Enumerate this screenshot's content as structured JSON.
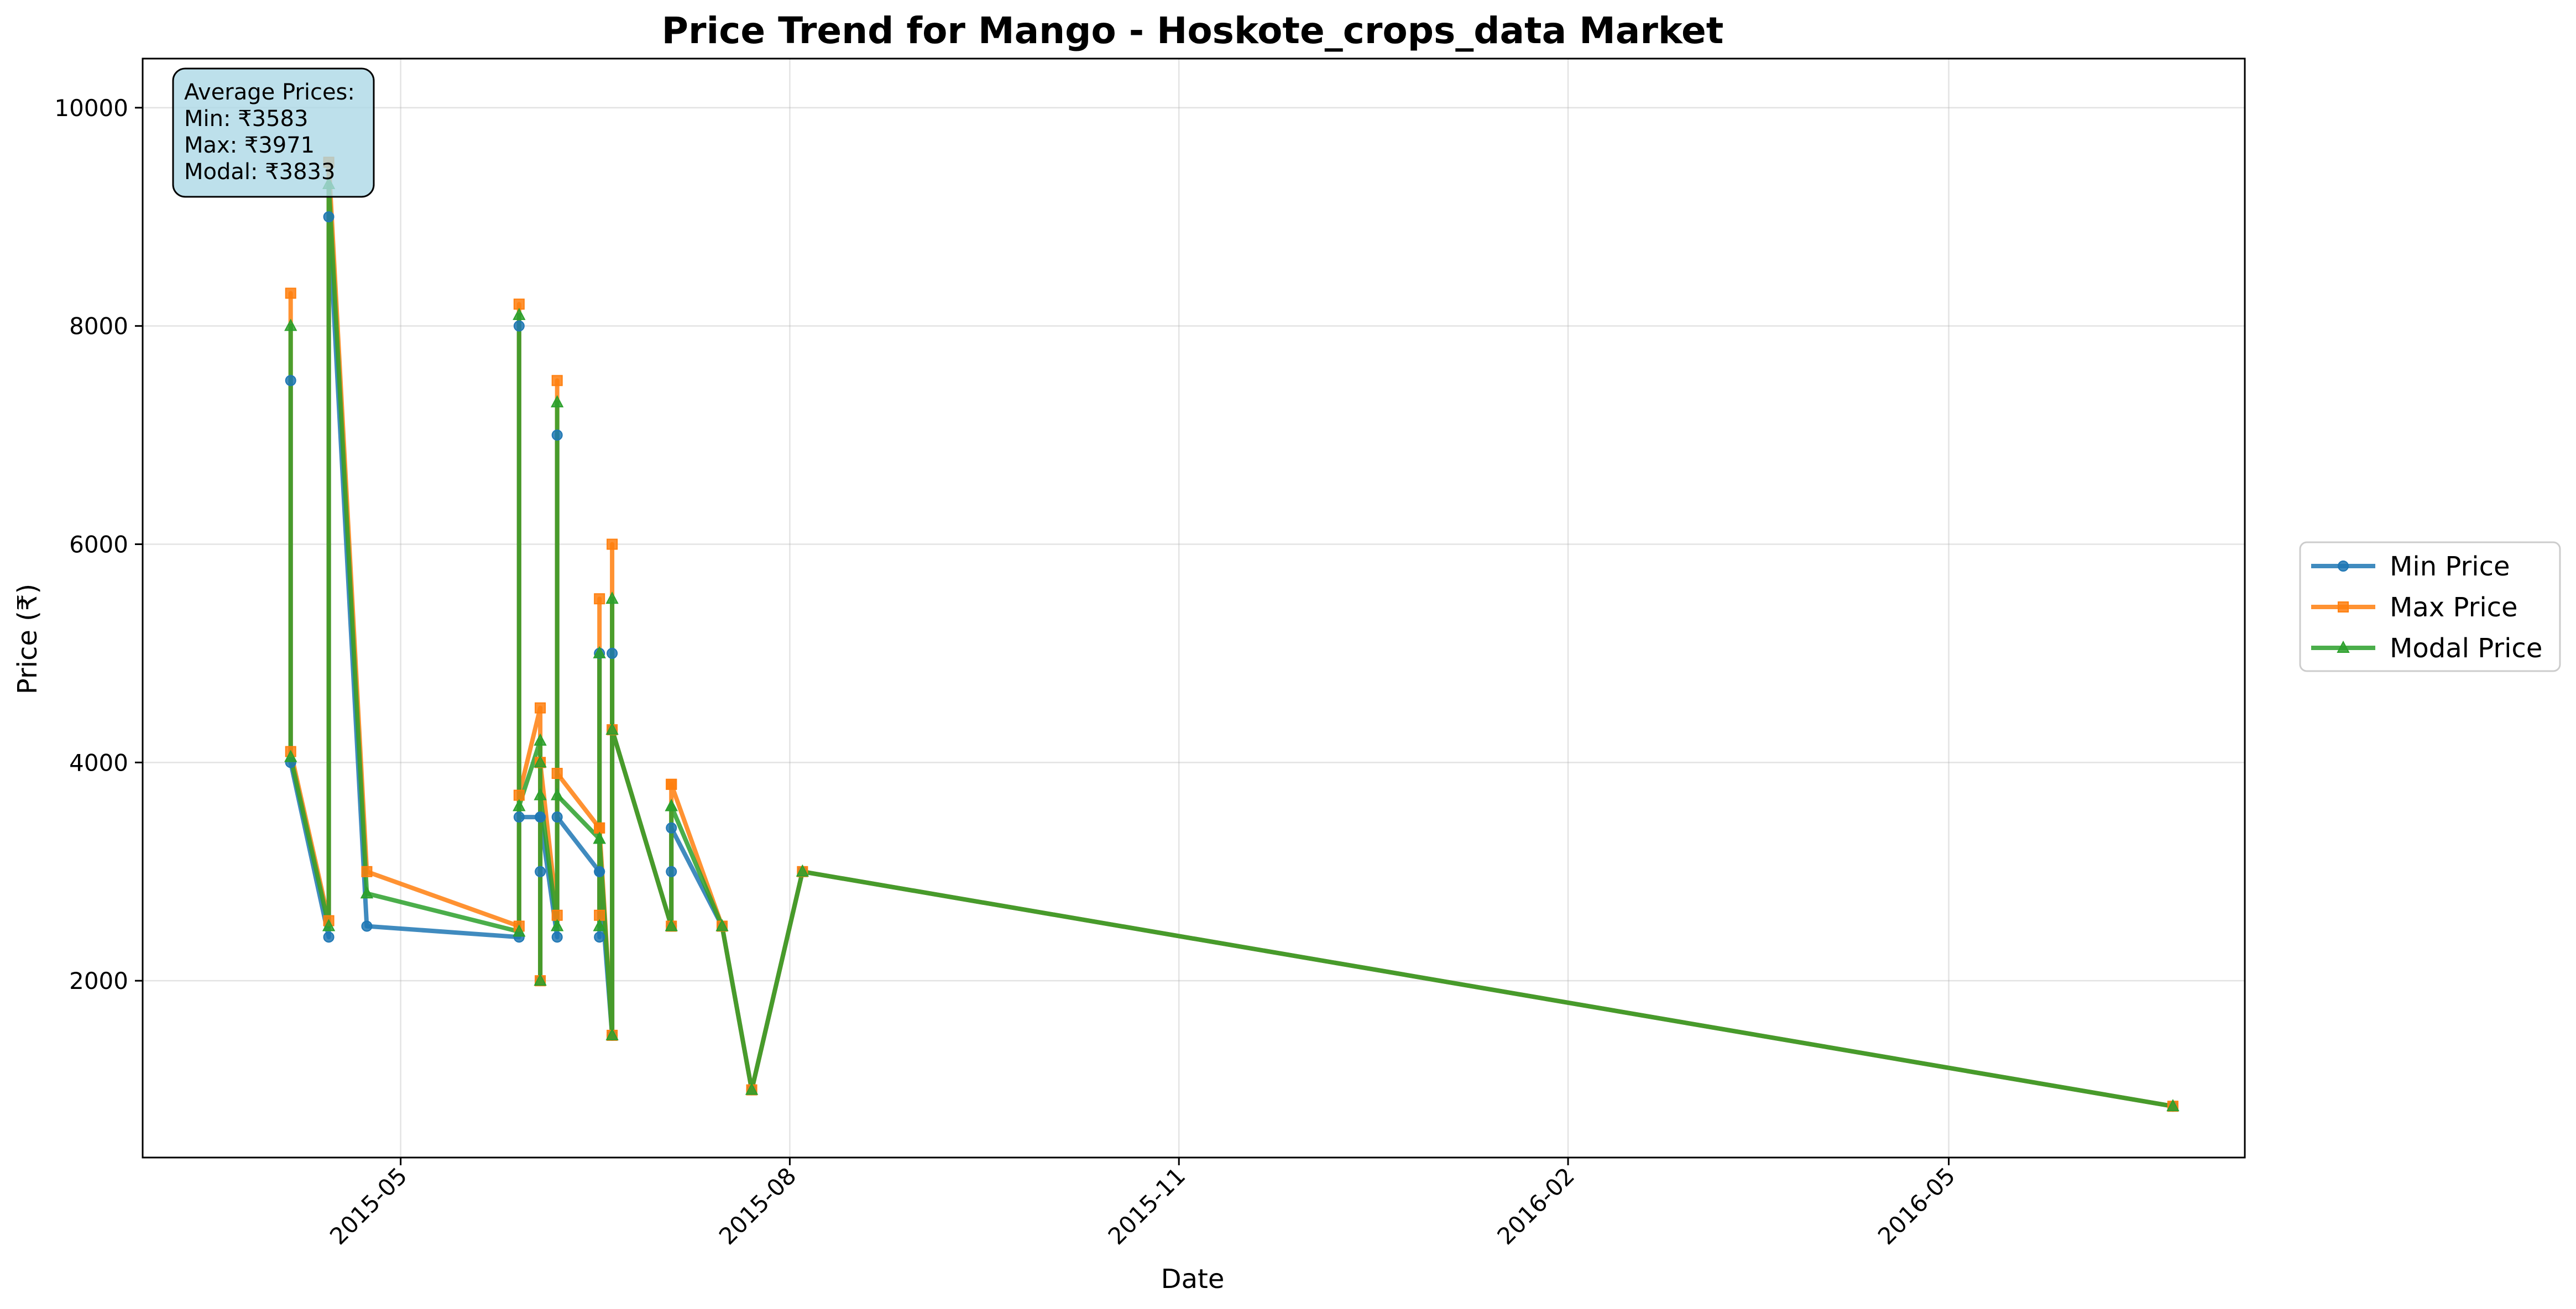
{
  "chart_data": {
    "type": "line",
    "title": "Price Trend for Mango - Hoskote_crops_data Market",
    "xlabel": "Date",
    "ylabel": "Price (₹)",
    "x_axis_type": "date",
    "xlim": [
      "2015-03-01",
      "2016-07-10"
    ],
    "ylim": [
      380,
      10450
    ],
    "x_ticks": [
      "2015-05-01",
      "2015-08-01",
      "2015-11-01",
      "2016-02-01",
      "2016-05-01"
    ],
    "x_tick_labels": [
      "2015-05",
      "2015-08",
      "2015-11",
      "2016-02",
      "2016-05"
    ],
    "x_tick_rotation_deg": 45,
    "y_ticks": [
      2000,
      4000,
      6000,
      8000,
      10000
    ],
    "y_tick_labels": [
      "2000",
      "4000",
      "6000",
      "8000",
      "10000"
    ],
    "grid": true,
    "legend_position": "right, outside the plot area",
    "stats_box": {
      "lines": [
        "Average Prices:",
        "Min: ₹3583",
        "Max: ₹3971",
        "Modal: ₹3833"
      ],
      "fill_color": "#add8e6"
    },
    "series": [
      {
        "name": "Min Price",
        "color": "#1f77b4",
        "marker": "circle",
        "points": [
          [
            "2015-04-05",
            7500
          ],
          [
            "2015-04-05",
            4000
          ],
          [
            "2015-04-14",
            2400
          ],
          [
            "2015-04-14",
            9000
          ],
          [
            "2015-04-23",
            2500
          ],
          [
            "2015-05-29",
            2400
          ],
          [
            "2015-05-29",
            8000
          ],
          [
            "2015-05-29",
            3500
          ],
          [
            "2015-06-03",
            3500
          ],
          [
            "2015-06-03",
            3000
          ],
          [
            "2015-06-03",
            2000
          ],
          [
            "2015-06-03",
            3500
          ],
          [
            "2015-06-07",
            2400
          ],
          [
            "2015-06-07",
            7000
          ],
          [
            "2015-06-07",
            3500
          ],
          [
            "2015-06-17",
            3000
          ],
          [
            "2015-06-17",
            2400
          ],
          [
            "2015-06-17",
            5000
          ],
          [
            "2015-06-17",
            3000
          ],
          [
            "2015-06-20",
            1500
          ],
          [
            "2015-06-20",
            5000
          ],
          [
            "2015-06-20",
            4300
          ],
          [
            "2015-07-04",
            2500
          ],
          [
            "2015-07-04",
            3000
          ],
          [
            "2015-07-04",
            3400
          ],
          [
            "2015-07-16",
            2500
          ],
          [
            "2015-07-23",
            1000
          ],
          [
            "2015-08-04",
            3000
          ],
          [
            "2016-06-23",
            850
          ]
        ]
      },
      {
        "name": "Max Price",
        "color": "#ff7f0e",
        "marker": "square",
        "points": [
          [
            "2015-04-05",
            8300
          ],
          [
            "2015-04-05",
            4100
          ],
          [
            "2015-04-14",
            2550
          ],
          [
            "2015-04-14",
            9500
          ],
          [
            "2015-04-23",
            3000
          ],
          [
            "2015-05-29",
            2500
          ],
          [
            "2015-05-29",
            8200
          ],
          [
            "2015-05-29",
            3700
          ],
          [
            "2015-06-03",
            4500
          ],
          [
            "2015-06-03",
            4000
          ],
          [
            "2015-06-03",
            2000
          ],
          [
            "2015-06-03",
            4000
          ],
          [
            "2015-06-07",
            2600
          ],
          [
            "2015-06-07",
            7500
          ],
          [
            "2015-06-07",
            3900
          ],
          [
            "2015-06-17",
            3400
          ],
          [
            "2015-06-17",
            2600
          ],
          [
            "2015-06-17",
            5500
          ],
          [
            "2015-06-17",
            3400
          ],
          [
            "2015-06-20",
            1500
          ],
          [
            "2015-06-20",
            6000
          ],
          [
            "2015-06-20",
            4300
          ],
          [
            "2015-07-04",
            2500
          ],
          [
            "2015-07-04",
            3800
          ],
          [
            "2015-07-04",
            3800
          ],
          [
            "2015-07-16",
            2500
          ],
          [
            "2015-07-23",
            1000
          ],
          [
            "2015-08-04",
            3000
          ],
          [
            "2016-06-23",
            850
          ]
        ]
      },
      {
        "name": "Modal Price",
        "color": "#2ca02c",
        "marker": "triangle",
        "points": [
          [
            "2015-04-05",
            8000
          ],
          [
            "2015-04-05",
            4050
          ],
          [
            "2015-04-14",
            2500
          ],
          [
            "2015-04-14",
            9300
          ],
          [
            "2015-04-23",
            2800
          ],
          [
            "2015-05-29",
            2450
          ],
          [
            "2015-05-29",
            8100
          ],
          [
            "2015-05-29",
            3600
          ],
          [
            "2015-06-03",
            4200
          ],
          [
            "2015-06-03",
            4000
          ],
          [
            "2015-06-03",
            2000
          ],
          [
            "2015-06-03",
            3700
          ],
          [
            "2015-06-07",
            2500
          ],
          [
            "2015-06-07",
            7300
          ],
          [
            "2015-06-07",
            3700
          ],
          [
            "2015-06-17",
            3300
          ],
          [
            "2015-06-17",
            2500
          ],
          [
            "2015-06-17",
            5000
          ],
          [
            "2015-06-17",
            3300
          ],
          [
            "2015-06-20",
            1500
          ],
          [
            "2015-06-20",
            5500
          ],
          [
            "2015-06-20",
            4300
          ],
          [
            "2015-07-04",
            2500
          ],
          [
            "2015-07-04",
            3600
          ],
          [
            "2015-07-04",
            3600
          ],
          [
            "2015-07-16",
            2500
          ],
          [
            "2015-07-23",
            1000
          ],
          [
            "2015-08-04",
            3000
          ],
          [
            "2016-06-23",
            850
          ]
        ]
      }
    ]
  }
}
